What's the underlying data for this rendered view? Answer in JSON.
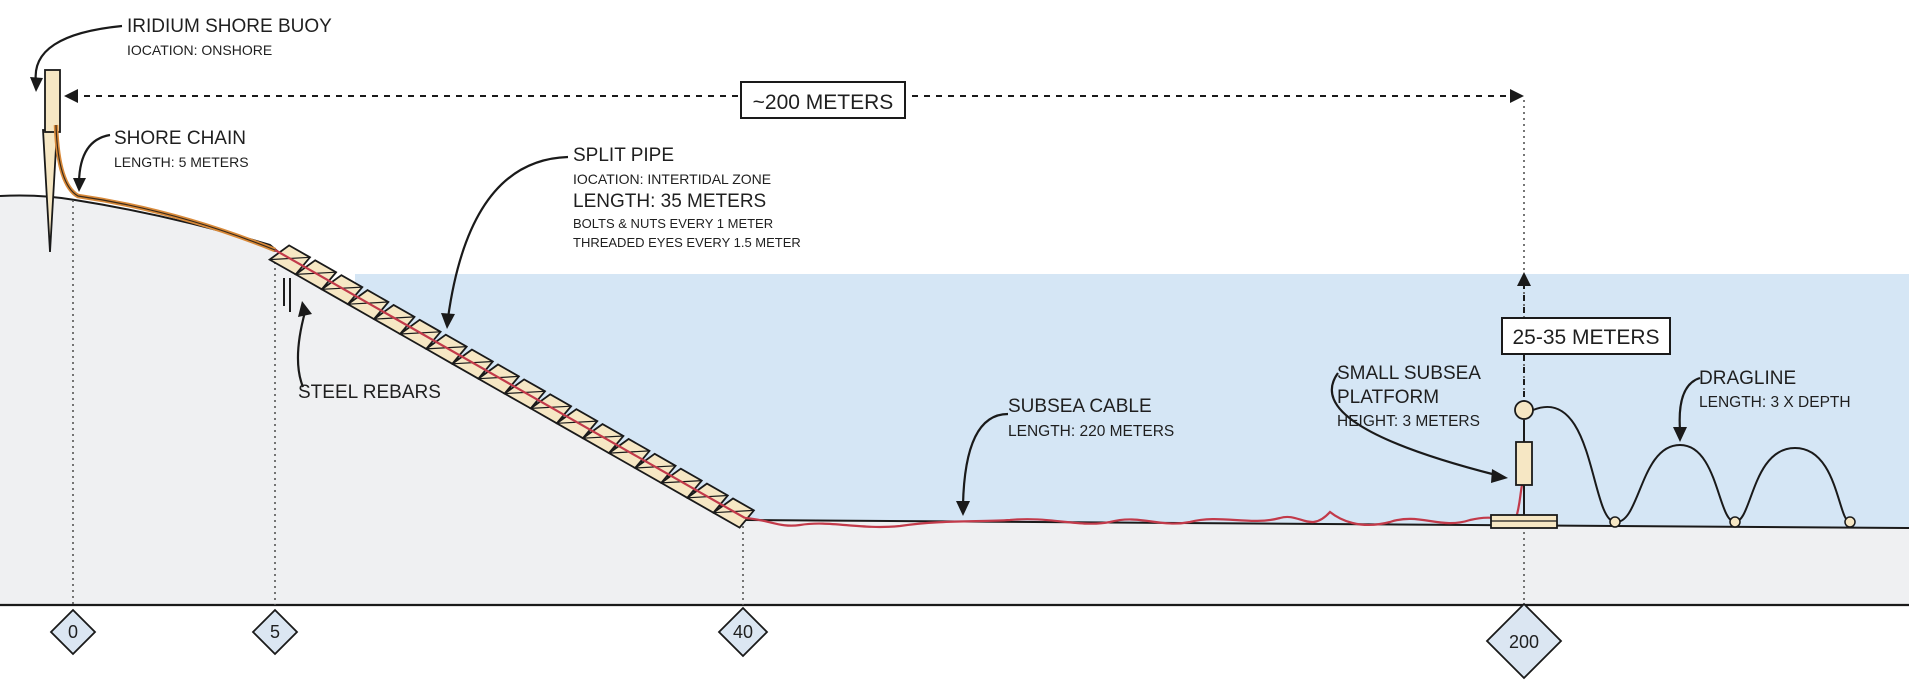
{
  "labels": {
    "buoy_title": "IRIDIUM SHORE BUOY",
    "buoy_location": "IOCATION: ONSHORE",
    "chain_title": "SHORE CHAIN",
    "chain_length": "LENGTH: 5 METERS",
    "pipe_title": "SPLIT PIPE",
    "pipe_location": "IOCATION: INTERTIDAL ZONE",
    "pipe_length": "LENGTH: 35 METERS",
    "pipe_bolts": "BOLTS & NUTS EVERY 1 METER",
    "pipe_eyes": "THREADED EYES EVERY 1.5 METER",
    "rebars": "STEEL REBARS",
    "cable_title": "SUBSEA CABLE",
    "cable_length": "LENGTH: 220 METERS",
    "platform_title_1": "SMALL SUBSEA",
    "platform_title_2": "PLATFORM",
    "platform_height": "HEIGHT: 3 METERS",
    "dragline_title": "DRAGLINE",
    "dragline_length": "LENGTH: 3 X DEPTH",
    "distance_box": "~200 METERS",
    "depth_box": "25-35 METERS"
  },
  "markers": [
    {
      "label": "0"
    },
    {
      "label": "5"
    },
    {
      "label": "40"
    },
    {
      "label": "200"
    }
  ],
  "colors": {
    "land": "#eff0f2",
    "water": "#d5e6f5",
    "cable": "#c23a4a",
    "chain": "#d98a3a",
    "pipe_fill": "#f6e7c4",
    "buoy_fill": "#f6e7c4",
    "marker_fill": "#dbe6f2"
  }
}
